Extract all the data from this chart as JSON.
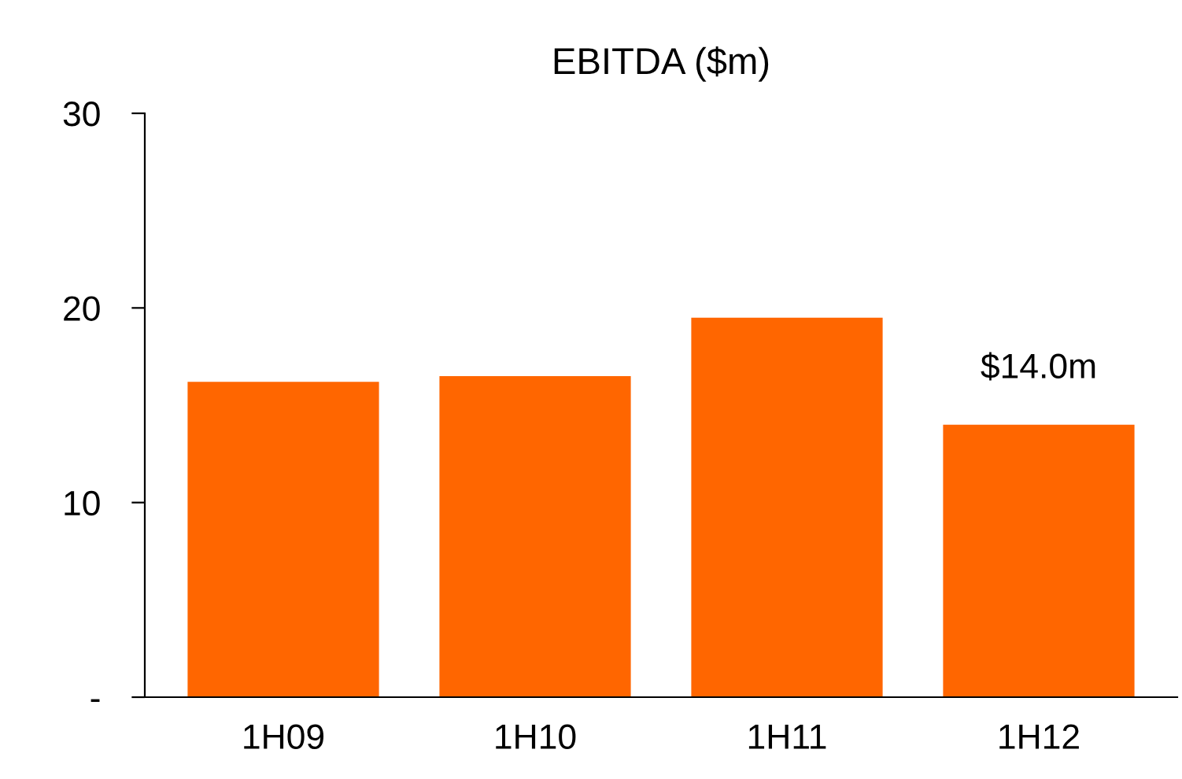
{
  "chart_data": {
    "type": "bar",
    "title": "EBITDA ($m)",
    "categories": [
      "1H09",
      "1H10",
      "1H11",
      "1H12"
    ],
    "values": [
      16.2,
      16.5,
      19.5,
      14.0
    ],
    "value_labels": [
      null,
      null,
      null,
      "$14.0m"
    ],
    "color": "#ff6600",
    "ylim": [
      0,
      30
    ],
    "yticks": [
      {
        "value": 0,
        "label": "-"
      },
      10,
      20,
      30
    ],
    "grid": false,
    "legend": false
  }
}
